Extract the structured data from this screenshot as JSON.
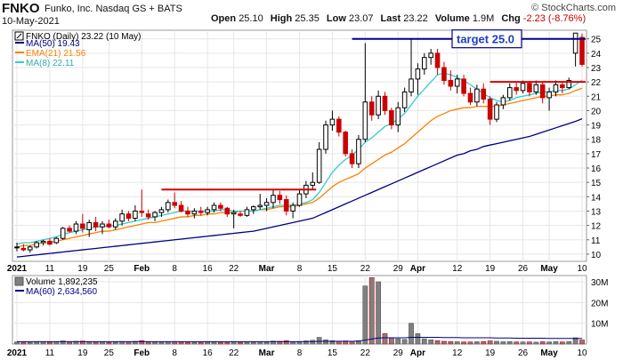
{
  "header": {
    "ticker": "FNKO",
    "company": "Funko, Inc. Nasdaq GS + BATS",
    "credit": "© StockCharts.com",
    "date": "10-May-2021",
    "quote": {
      "open_label": "Open",
      "open": "25.10",
      "high_label": "High",
      "high": "25.35",
      "low_label": "Low",
      "low": "23.07",
      "last_label": "Last",
      "last": "23.22",
      "volume_label": "Volume",
      "volume": "1.9M",
      "chg_label": "Chg",
      "chg": "-2.23 (-8.76%)"
    }
  },
  "legend": {
    "price": "FNKO (Daily) 23.22 (10 May)",
    "ma50": "MA(50) 19.43",
    "ema21": "EMA(21) 21.56",
    "ma8": "MA(8) 22.11"
  },
  "volume_legend": {
    "volume": "Volume 1,892,235",
    "ma60": "MA(60) 2,634,560"
  },
  "annotation": {
    "target_label": "target 25.0"
  },
  "colors": {
    "up": "#000000",
    "down": "#cc0000",
    "ma50": "#000080",
    "ema21": "#ff8000",
    "ma8": "#33cccc",
    "annotation_red": "#dd0000",
    "annotation_blue": "#00008b",
    "grid": "#e6e6e6",
    "volume": "#808080"
  },
  "chart_data": [
    {
      "type": "candlestick",
      "series_name": "FNKO (Daily)",
      "y_ticks": [
        10,
        11,
        12,
        13,
        14,
        15,
        16,
        17,
        18,
        19,
        20,
        21,
        22,
        23,
        24,
        25
      ],
      "ylim": [
        9.5,
        25.6
      ],
      "x_tick_labels": [
        {
          "label": "2021",
          "day": 0
        },
        {
          "label": "11",
          "day": 5
        },
        {
          "label": "19",
          "day": 10
        },
        {
          "label": "25",
          "day": 14
        },
        {
          "label": "Feb",
          "day": 19
        },
        {
          "label": "8",
          "day": 24
        },
        {
          "label": "16",
          "day": 29
        },
        {
          "label": "22",
          "day": 33
        },
        {
          "label": "Mar",
          "day": 38
        },
        {
          "label": "8",
          "day": 43
        },
        {
          "label": "15",
          "day": 48
        },
        {
          "label": "22",
          "day": 53
        },
        {
          "label": "29",
          "day": 58
        },
        {
          "label": "Apr",
          "day": 61
        },
        {
          "label": "12",
          "day": 67
        },
        {
          "label": "19",
          "day": 72
        },
        {
          "label": "26",
          "day": 77
        },
        {
          "label": "May",
          "day": 81
        },
        {
          "label": "10",
          "day": 86
        }
      ],
      "ohlc": [
        [
          10.5,
          10.8,
          10.2,
          10.5
        ],
        [
          10.4,
          10.7,
          10.2,
          10.3
        ],
        [
          10.3,
          10.6,
          10.1,
          10.5
        ],
        [
          10.5,
          10.9,
          10.4,
          10.8
        ],
        [
          10.8,
          11.0,
          10.6,
          10.9
        ],
        [
          10.9,
          11.1,
          10.6,
          10.7
        ],
        [
          10.8,
          11.2,
          10.7,
          11.1
        ],
        [
          11.1,
          11.9,
          11.0,
          11.8
        ],
        [
          11.8,
          12.0,
          11.5,
          11.6
        ],
        [
          11.6,
          12.3,
          11.4,
          12.1
        ],
        [
          12.1,
          12.8,
          11.5,
          11.8
        ],
        [
          11.7,
          12.4,
          11.2,
          12.2
        ],
        [
          12.2,
          12.6,
          11.6,
          11.9
        ],
        [
          11.9,
          12.3,
          11.4,
          12.1
        ],
        [
          12.1,
          12.4,
          11.8,
          11.9
        ],
        [
          11.9,
          12.5,
          11.7,
          12.3
        ],
        [
          12.3,
          13.1,
          12.0,
          12.8
        ],
        [
          12.8,
          13.0,
          12.3,
          12.5
        ],
        [
          12.5,
          13.4,
          12.3,
          13.0
        ],
        [
          13.0,
          14.5,
          12.6,
          12.9
        ],
        [
          12.8,
          13.1,
          12.4,
          12.6
        ],
        [
          12.6,
          13.0,
          12.3,
          12.9
        ],
        [
          12.9,
          13.3,
          12.6,
          13.1
        ],
        [
          13.1,
          13.8,
          12.9,
          13.6
        ],
        [
          13.6,
          14.3,
          13.2,
          13.4
        ],
        [
          13.4,
          13.7,
          12.9,
          13.0
        ],
        [
          13.0,
          13.3,
          12.6,
          12.8
        ],
        [
          12.8,
          13.2,
          12.5,
          13.0
        ],
        [
          13.0,
          13.3,
          12.7,
          12.9
        ],
        [
          12.9,
          13.3,
          12.7,
          13.1
        ],
        [
          13.1,
          13.6,
          12.9,
          13.4
        ],
        [
          13.4,
          13.6,
          13.0,
          13.2
        ],
        [
          13.2,
          13.3,
          12.6,
          12.8
        ],
        [
          12.8,
          13.1,
          11.8,
          12.9
        ],
        [
          12.8,
          13.0,
          12.6,
          12.7
        ],
        [
          12.7,
          13.3,
          12.6,
          13.1
        ],
        [
          13.1,
          13.4,
          12.8,
          13.3
        ],
        [
          13.3,
          14.2,
          13.1,
          13.4
        ],
        [
          13.4,
          13.9,
          13.0,
          13.6
        ],
        [
          13.6,
          14.5,
          13.2,
          14.1
        ],
        [
          14.1,
          14.4,
          13.5,
          13.8
        ],
        [
          13.8,
          14.1,
          12.7,
          13.0
        ],
        [
          13.0,
          13.6,
          12.5,
          13.4
        ],
        [
          13.4,
          14.5,
          13.3,
          14.2
        ],
        [
          14.2,
          15.1,
          13.9,
          14.8
        ],
        [
          14.8,
          15.7,
          14.5,
          15.0
        ],
        [
          15.0,
          17.8,
          14.9,
          17.3
        ],
        [
          17.3,
          19.3,
          17.0,
          19.0
        ],
        [
          19.0,
          20.0,
          18.6,
          19.4
        ],
        [
          19.4,
          19.6,
          18.2,
          18.5
        ],
        [
          18.5,
          18.6,
          16.8,
          17.0
        ],
        [
          17.0,
          17.3,
          16.0,
          16.3
        ],
        [
          16.3,
          18.3,
          16.0,
          18.0
        ],
        [
          18.0,
          24.7,
          17.8,
          20.6
        ],
        [
          20.6,
          21.0,
          19.3,
          19.7
        ],
        [
          19.7,
          21.4,
          19.4,
          21.0
        ],
        [
          21.0,
          21.3,
          19.7,
          20.0
        ],
        [
          20.0,
          20.2,
          18.7,
          19.0
        ],
        [
          19.0,
          20.6,
          18.5,
          20.2
        ],
        [
          20.2,
          21.6,
          19.9,
          21.3
        ],
        [
          21.3,
          25.0,
          21.0,
          22.2
        ],
        [
          22.2,
          23.3,
          21.1,
          22.9
        ],
        [
          22.9,
          24.0,
          22.5,
          23.7
        ],
        [
          23.7,
          24.3,
          23.2,
          24.0
        ],
        [
          24.0,
          24.3,
          22.5,
          23.0
        ],
        [
          23.0,
          23.4,
          21.8,
          22.1
        ],
        [
          22.1,
          22.8,
          21.4,
          21.7
        ],
        [
          21.7,
          22.5,
          21.2,
          22.2
        ],
        [
          22.2,
          22.5,
          21.0,
          21.2
        ],
        [
          21.2,
          21.6,
          20.4,
          20.6
        ],
        [
          20.6,
          21.8,
          20.3,
          21.5
        ],
        [
          21.5,
          21.9,
          20.5,
          20.8
        ],
        [
          20.8,
          21.0,
          19.0,
          19.4
        ],
        [
          19.4,
          20.6,
          19.2,
          20.4
        ],
        [
          20.4,
          21.1,
          20.1,
          20.9
        ],
        [
          20.9,
          21.9,
          20.7,
          21.6
        ],
        [
          21.6,
          22.0,
          21.1,
          21.4
        ],
        [
          21.4,
          22.1,
          21.2,
          21.9
        ],
        [
          21.9,
          22.0,
          21.0,
          21.3
        ],
        [
          21.3,
          22.1,
          21.1,
          21.8
        ],
        [
          21.8,
          22.0,
          20.5,
          20.9
        ],
        [
          20.9,
          21.6,
          20.0,
          21.3
        ],
        [
          21.3,
          22.1,
          21.0,
          21.8
        ],
        [
          21.8,
          22.0,
          21.2,
          21.6
        ],
        [
          21.6,
          22.3,
          21.5,
          22.1
        ],
        [
          24.0,
          25.35,
          23.07,
          25.4
        ],
        [
          25.1,
          25.35,
          23.07,
          23.22
        ]
      ],
      "ma8": [
        10.7,
        10.8,
        10.8,
        10.9,
        11.0,
        11.1,
        11.2,
        11.4,
        11.5,
        11.6,
        11.7,
        11.8,
        11.9,
        11.9,
        12.0,
        12.0,
        12.1,
        12.2,
        12.3,
        12.4,
        12.5,
        12.6,
        12.7,
        12.8,
        12.9,
        13.0,
        13.0,
        13.0,
        13.0,
        13.0,
        13.0,
        13.1,
        13.1,
        13.0,
        13.0,
        13.0,
        13.0,
        13.1,
        13.2,
        13.3,
        13.4,
        13.4,
        13.4,
        13.5,
        13.6,
        13.8,
        14.3,
        15.0,
        15.7,
        16.2,
        16.6,
        16.9,
        17.3,
        17.8,
        18.1,
        18.5,
        18.9,
        19.1,
        19.4,
        19.8,
        20.4,
        21.0,
        21.5,
        22.0,
        22.5,
        22.6,
        22.5,
        22.3,
        22.1,
        21.8,
        21.5,
        21.2,
        20.9,
        20.7,
        20.6,
        20.7,
        20.9,
        21.0,
        21.1,
        21.2,
        21.3,
        21.3,
        21.4,
        21.4,
        21.5,
        21.8,
        22.11
      ],
      "ema21": [
        10.5,
        10.6,
        10.6,
        10.7,
        10.8,
        10.8,
        10.9,
        11.0,
        11.1,
        11.2,
        11.3,
        11.4,
        11.5,
        11.6,
        11.6,
        11.7,
        11.8,
        11.9,
        12.0,
        12.1,
        12.2,
        12.2,
        12.3,
        12.4,
        12.5,
        12.6,
        12.6,
        12.7,
        12.7,
        12.8,
        12.8,
        12.9,
        12.9,
        12.9,
        13.0,
        13.0,
        13.0,
        13.1,
        13.1,
        13.2,
        13.3,
        13.3,
        13.3,
        13.4,
        13.5,
        13.6,
        13.9,
        14.3,
        14.7,
        15.0,
        15.2,
        15.4,
        15.6,
        16.0,
        16.3,
        16.6,
        16.9,
        17.1,
        17.4,
        17.7,
        18.1,
        18.5,
        18.9,
        19.3,
        19.6,
        19.8,
        20.0,
        20.1,
        20.2,
        20.2,
        20.3,
        20.3,
        20.3,
        20.3,
        20.4,
        20.5,
        20.6,
        20.7,
        20.8,
        20.9,
        21.0,
        21.0,
        21.1,
        21.1,
        21.2,
        21.4,
        21.56
      ],
      "ma50": [
        9.8,
        9.85,
        9.9,
        9.95,
        10.0,
        10.05,
        10.1,
        10.15,
        10.2,
        10.25,
        10.3,
        10.35,
        10.4,
        10.45,
        10.5,
        10.55,
        10.6,
        10.65,
        10.7,
        10.75,
        10.8,
        10.85,
        10.9,
        10.95,
        11.0,
        11.05,
        11.1,
        11.15,
        11.2,
        11.25,
        11.3,
        11.35,
        11.4,
        11.45,
        11.5,
        11.55,
        11.6,
        11.7,
        11.8,
        11.9,
        12.0,
        12.1,
        12.2,
        12.3,
        12.4,
        12.5,
        12.7,
        12.9,
        13.1,
        13.3,
        13.5,
        13.7,
        13.9,
        14.1,
        14.3,
        14.5,
        14.7,
        14.9,
        15.1,
        15.3,
        15.5,
        15.7,
        15.9,
        16.1,
        16.3,
        16.5,
        16.7,
        16.9,
        17.0,
        17.2,
        17.3,
        17.5,
        17.6,
        17.7,
        17.8,
        17.9,
        18.0,
        18.1,
        18.2,
        18.35,
        18.5,
        18.65,
        18.8,
        18.95,
        19.1,
        19.25,
        19.43
      ],
      "annotations": [
        {
          "kind": "resistance",
          "y": 14.5,
          "x0": 22,
          "x1": 45
        },
        {
          "kind": "resistance",
          "y": 22.0,
          "x0": 72,
          "x1": 86
        },
        {
          "kind": "target",
          "y": 25.0,
          "x0": 51,
          "x1": 86,
          "label": "target 25.0"
        }
      ]
    },
    {
      "type": "bar",
      "series_name": "Volume",
      "y_ticks": [
        10000000,
        20000000,
        30000000
      ],
      "y_tick_labels": [
        "10M",
        "20M",
        "30M"
      ],
      "ylim": [
        0,
        33000000
      ],
      "values": [
        1.0,
        0.9,
        0.8,
        1.2,
        1.0,
        0.9,
        1.1,
        1.5,
        1.2,
        1.3,
        1.4,
        1.0,
        0.9,
        1.0,
        0.8,
        0.9,
        1.2,
        1.0,
        1.3,
        1.6,
        1.0,
        0.9,
        0.9,
        1.1,
        1.2,
        0.9,
        0.8,
        0.8,
        0.8,
        0.9,
        1.0,
        0.8,
        0.8,
        1.0,
        0.8,
        0.8,
        0.9,
        1.1,
        0.9,
        1.4,
        1.3,
        1.6,
        1.1,
        1.2,
        1.5,
        1.8,
        3.2,
        2.0,
        1.6,
        1.4,
        1.5,
        1.3,
        1.6,
        28.0,
        32.0,
        30.0,
        5.0,
        3.0,
        2.5,
        2.2,
        10.0,
        5.0,
        2.5,
        2.0,
        1.6,
        1.3,
        1.2,
        1.1,
        1.0,
        1.0,
        1.1,
        1.2,
        1.5,
        1.3,
        1.1,
        1.2,
        1.0,
        1.0,
        1.0,
        0.9,
        1.1,
        1.0,
        1.2,
        1.0,
        1.2,
        3.0,
        1.9
      ],
      "values_unit": "millions",
      "ma60": [
        1.1,
        1.1,
        1.1,
        1.1,
        1.1,
        1.1,
        1.1,
        1.1,
        1.1,
        1.1,
        1.1,
        1.1,
        1.1,
        1.1,
        1.1,
        1.1,
        1.1,
        1.1,
        1.1,
        1.1,
        1.1,
        1.1,
        1.1,
        1.1,
        1.1,
        1.1,
        1.1,
        1.1,
        1.1,
        1.1,
        1.1,
        1.1,
        1.1,
        1.1,
        1.1,
        1.1,
        1.1,
        1.1,
        1.1,
        1.1,
        1.1,
        1.1,
        1.1,
        1.1,
        1.2,
        1.2,
        1.3,
        1.3,
        1.3,
        1.3,
        1.3,
        1.3,
        1.4,
        1.9,
        2.4,
        2.9,
        3.0,
        3.0,
        3.0,
        3.0,
        3.2,
        3.2,
        3.2,
        3.2,
        3.2,
        3.1,
        3.1,
        3.1,
        3.0,
        3.0,
        3.0,
        3.0,
        3.0,
        2.9,
        2.9,
        2.9,
        2.8,
        2.8,
        2.8,
        2.8,
        2.8,
        2.7,
        2.7,
        2.7,
        2.7,
        2.7,
        2.63
      ]
    }
  ]
}
